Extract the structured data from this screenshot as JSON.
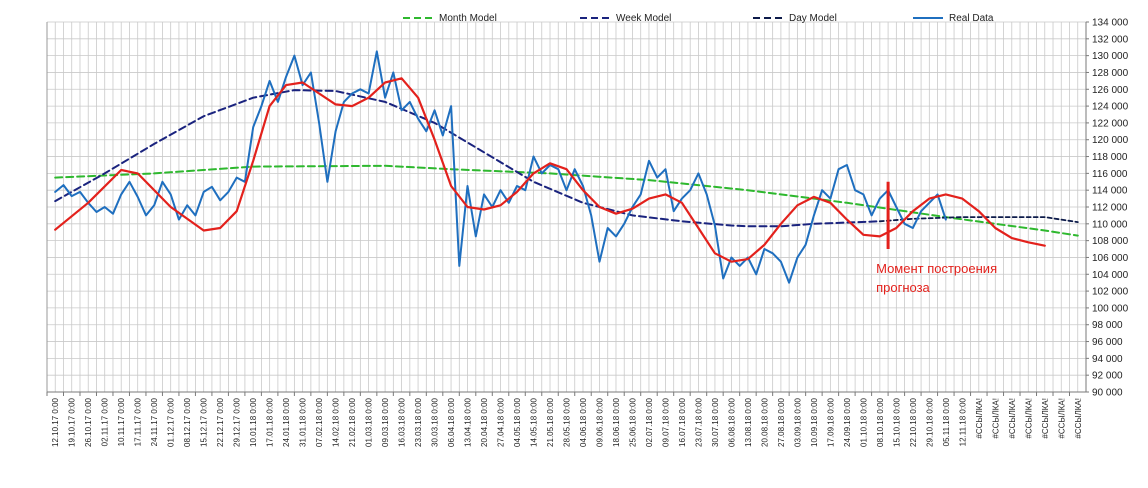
{
  "chart_data": {
    "type": "line",
    "title": "",
    "xlabel": "",
    "ylabel": "",
    "ylim": [
      90000,
      134000
    ],
    "ytick_step": 2000,
    "yticks": [
      "90 000",
      "92 000",
      "94 000",
      "96 000",
      "98 000",
      "100 000",
      "102 000",
      "104 000",
      "106 000",
      "108 000",
      "110 000",
      "112 000",
      "114 000",
      "116 000",
      "118 000",
      "120 000",
      "122 000",
      "124 000",
      "126 000",
      "128 000",
      "130 000",
      "132 000",
      "134 000"
    ],
    "x_ticks": [
      "12.10.17 0:00",
      "19.10.17 0:00",
      "26.10.17 0:00",
      "02.11.17 0:00",
      "10.11.17 0:00",
      "17.11.17 0:00",
      "24.11.17 0:00",
      "01.12.17 0:00",
      "08.12.17 0:00",
      "15.12.17 0:00",
      "22.12.17 0:00",
      "29.12.17 0:00",
      "10.01.18 0:00",
      "17.01.18 0:00",
      "24.01.18 0:00",
      "31.01.18 0:00",
      "07.02.18 0:00",
      "14.02.18 0:00",
      "21.02.18 0:00",
      "01.03.18 0:00",
      "09.03.18 0:00",
      "16.03.18 0:00",
      "23.03.18 0:00",
      "30.03.18 0:00",
      "06.04.18 0:00",
      "13.04.18 0:00",
      "20.04.18 0:00",
      "27.04.18 0:00",
      "04.05.18 0:00",
      "14.05.18 0:00",
      "21.05.18 0:00",
      "28.05.18 0:00",
      "04.06.18 0:00",
      "09.06.18 0:00",
      "18.06.18 0:00",
      "25.06.18 0:00",
      "02.07.18 0:00",
      "09.07.18 0:00",
      "16.07.18 0:00",
      "23.07.18 0:00",
      "30.07.18 0:00",
      "06.08.18 0:00",
      "13.08.18 0:00",
      "20.08.18 0:00",
      "27.08.18 0:00",
      "03.09.18 0:00",
      "10.09.18 0:00",
      "17.09.18 0:00",
      "24.09.18 0:00",
      "01.10.18 0:00",
      "08.10.18 0:00",
      "15.10.18 0:00",
      "22.10.18 0:00",
      "29.10.18 0:00",
      "05.11.18 0:00",
      "12.11.18 0:00",
      "#ССЫЛКА!",
      "#ССЫЛКА!",
      "#ССЫЛКА!",
      "#ССЫЛКА!",
      "#ССЫЛКА!",
      "#ССЫЛКА!",
      "#ССЫЛКА!"
    ],
    "grid": true,
    "legend_position": "top",
    "legend": [
      {
        "label": "Month Model",
        "color": "#2eb82e",
        "style": "dashed"
      },
      {
        "label": "Week Model",
        "color": "#1a237e",
        "style": "dashed"
      },
      {
        "label": "Day Model",
        "color": "#0d1b4a",
        "style": "dashed"
      },
      {
        "label": "Real Data",
        "color": "#1f6fbf",
        "style": "solid"
      }
    ],
    "series": [
      {
        "name": "Month Model",
        "color": "#2eb82e",
        "dash": "7,4",
        "width": 2,
        "points": [
          [
            0,
            115500
          ],
          [
            6,
            116000
          ],
          [
            12,
            116800
          ],
          [
            20,
            116900
          ],
          [
            24,
            116500
          ],
          [
            30,
            116000
          ],
          [
            36,
            115200
          ],
          [
            42,
            114000
          ],
          [
            48,
            112500
          ],
          [
            54,
            110800
          ],
          [
            60,
            109200
          ],
          [
            62,
            108600
          ]
        ]
      },
      {
        "name": "Week Model",
        "color": "#1a237e",
        "dash": "7,4",
        "width": 2,
        "points": [
          [
            0,
            112700
          ],
          [
            3,
            116000
          ],
          [
            6,
            119500
          ],
          [
            9,
            122800
          ],
          [
            12,
            125000
          ],
          [
            14.5,
            125900
          ],
          [
            17,
            125800
          ],
          [
            20,
            124500
          ],
          [
            23,
            122000
          ],
          [
            26,
            118500
          ],
          [
            29,
            115000
          ],
          [
            32,
            112500
          ],
          [
            35,
            111000
          ],
          [
            38,
            110300
          ],
          [
            41,
            109800
          ],
          [
            42,
            109700
          ],
          [
            44,
            109700
          ],
          [
            46,
            110000
          ],
          [
            50,
            110300
          ]
        ]
      },
      {
        "name": "Day Model",
        "color": "#0d1b4a",
        "dash": "4,3",
        "width": 1.8,
        "points": [
          [
            50,
            110300
          ],
          [
            52,
            110600
          ],
          [
            55,
            110800
          ],
          [
            58,
            110800
          ],
          [
            60,
            110800
          ],
          [
            62,
            110200
          ]
        ]
      },
      {
        "name": "Real Data",
        "color": "#1f6fbf",
        "dash": "",
        "width": 2,
        "points": [
          [
            0,
            113800
          ],
          [
            0.5,
            114600
          ],
          [
            1,
            113300
          ],
          [
            1.5,
            113800
          ],
          [
            2,
            112500
          ],
          [
            2.5,
            111400
          ],
          [
            3,
            112000
          ],
          [
            3.5,
            111200
          ],
          [
            4,
            113500
          ],
          [
            4.5,
            115000
          ],
          [
            5,
            113200
          ],
          [
            5.5,
            111000
          ],
          [
            6,
            112200
          ],
          [
            6.5,
            115000
          ],
          [
            7,
            113500
          ],
          [
            7.5,
            110500
          ],
          [
            8,
            112200
          ],
          [
            8.5,
            111000
          ],
          [
            9,
            113800
          ],
          [
            9.5,
            114400
          ],
          [
            10,
            112800
          ],
          [
            10.5,
            113800
          ],
          [
            11,
            115500
          ],
          [
            11.5,
            115000
          ],
          [
            12,
            121500
          ],
          [
            12.5,
            124000
          ],
          [
            13,
            127000
          ],
          [
            13.5,
            124500
          ],
          [
            14,
            127500
          ],
          [
            14.5,
            130000
          ],
          [
            15,
            126500
          ],
          [
            15.5,
            128000
          ],
          [
            16,
            122000
          ],
          [
            16.5,
            115000
          ],
          [
            17,
            121000
          ],
          [
            17.5,
            124500
          ],
          [
            18,
            125500
          ],
          [
            18.5,
            126000
          ],
          [
            19,
            125500
          ],
          [
            19.5,
            130500
          ],
          [
            20,
            125000
          ],
          [
            20.5,
            128000
          ],
          [
            21,
            123500
          ],
          [
            21.5,
            124500
          ],
          [
            22,
            122500
          ],
          [
            22.5,
            121000
          ],
          [
            23,
            123500
          ],
          [
            23.5,
            120500
          ],
          [
            24,
            124000
          ],
          [
            24.5,
            105000
          ],
          [
            25,
            114500
          ],
          [
            25.5,
            108500
          ],
          [
            26,
            113500
          ],
          [
            26.5,
            112000
          ],
          [
            27,
            114000
          ],
          [
            27.5,
            112500
          ],
          [
            28,
            114500
          ],
          [
            28.5,
            114000
          ],
          [
            29,
            118000
          ],
          [
            29.5,
            116000
          ],
          [
            30,
            117000
          ],
          [
            30.5,
            116500
          ],
          [
            31,
            114000
          ],
          [
            31.5,
            116500
          ],
          [
            32,
            114500
          ],
          [
            32.5,
            111000
          ],
          [
            33,
            105500
          ],
          [
            33.5,
            109500
          ],
          [
            34,
            108500
          ],
          [
            34.5,
            110000
          ],
          [
            35,
            112000
          ],
          [
            35.5,
            113500
          ],
          [
            36,
            117500
          ],
          [
            36.5,
            115500
          ],
          [
            37,
            116500
          ],
          [
            37.5,
            111500
          ],
          [
            38,
            113000
          ],
          [
            38.5,
            114000
          ],
          [
            39,
            116000
          ],
          [
            39.5,
            113500
          ],
          [
            40,
            109800
          ],
          [
            40.5,
            103500
          ],
          [
            41,
            106000
          ],
          [
            41.5,
            105000
          ],
          [
            42,
            106000
          ],
          [
            42.5,
            104000
          ],
          [
            43,
            107000
          ],
          [
            43.5,
            106500
          ],
          [
            44,
            105500
          ],
          [
            44.5,
            103000
          ],
          [
            45,
            106000
          ],
          [
            45.5,
            107500
          ],
          [
            46,
            111000
          ],
          [
            46.5,
            114000
          ],
          [
            47,
            113000
          ],
          [
            47.5,
            116500
          ],
          [
            48,
            117000
          ],
          [
            48.5,
            114000
          ],
          [
            49,
            113500
          ],
          [
            49.5,
            111000
          ],
          [
            50,
            113000
          ],
          [
            50.5,
            114000
          ],
          [
            51,
            112000
          ],
          [
            51.5,
            110000
          ],
          [
            52,
            109500
          ],
          [
            52.5,
            111500
          ],
          [
            53,
            112500
          ],
          [
            53.5,
            113500
          ],
          [
            54,
            110500
          ]
        ]
      },
      {
        "name": "",
        "color": "#e3211c",
        "dash": "",
        "width": 2.2,
        "points": [
          [
            0,
            109300
          ],
          [
            2,
            112500
          ],
          [
            4,
            116400
          ],
          [
            5,
            116000
          ],
          [
            7,
            112000
          ],
          [
            9,
            109200
          ],
          [
            10,
            109500
          ],
          [
            11,
            111500
          ],
          [
            12,
            117500
          ],
          [
            13,
            124000
          ],
          [
            14,
            126500
          ],
          [
            15,
            126800
          ],
          [
            16,
            125500
          ],
          [
            17,
            124200
          ],
          [
            18,
            124000
          ],
          [
            19,
            125000
          ],
          [
            20,
            126800
          ],
          [
            21,
            127300
          ],
          [
            22,
            125000
          ],
          [
            23,
            120000
          ],
          [
            24,
            114500
          ],
          [
            25,
            112000
          ],
          [
            26,
            111700
          ],
          [
            27,
            112200
          ],
          [
            28,
            113800
          ],
          [
            29,
            116000
          ],
          [
            30,
            117200
          ],
          [
            31,
            116500
          ],
          [
            32,
            114000
          ],
          [
            33,
            112000
          ],
          [
            34,
            111200
          ],
          [
            35,
            111800
          ],
          [
            36,
            113000
          ],
          [
            37,
            113500
          ],
          [
            38,
            112500
          ],
          [
            39,
            109500
          ],
          [
            40,
            106500
          ],
          [
            41,
            105500
          ],
          [
            42,
            105800
          ],
          [
            43,
            107500
          ],
          [
            44,
            110000
          ],
          [
            45,
            112200
          ],
          [
            46,
            113200
          ],
          [
            47,
            112500
          ],
          [
            48,
            110500
          ],
          [
            49,
            108700
          ],
          [
            50,
            108500
          ],
          [
            51,
            109500
          ],
          [
            52,
            111500
          ],
          [
            53,
            113000
          ],
          [
            54,
            113500
          ],
          [
            55,
            113000
          ],
          [
            56,
            111500
          ],
          [
            57,
            109500
          ],
          [
            58,
            108300
          ],
          [
            59,
            107800
          ],
          [
            60,
            107400
          ]
        ]
      }
    ],
    "annotation": {
      "text_line1": "Момент построения",
      "text_line2": "прогноза",
      "color": "#e3211c",
      "x": 50.5,
      "y_from": 107000,
      "y_to": 115000
    }
  }
}
